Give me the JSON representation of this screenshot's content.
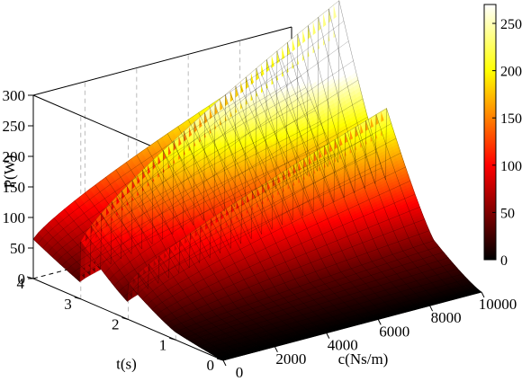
{
  "chart_data": {
    "type": "surface3d",
    "title": "",
    "xlabel": "c(Ns/m)",
    "ylabel": "t(s)",
    "zlabel": "P(W)",
    "xlim": [
      0,
      10000
    ],
    "ylim": [
      0,
      4
    ],
    "zlim": [
      0,
      300
    ],
    "x_ticks": [
      0,
      2000,
      4000,
      6000,
      8000,
      10000
    ],
    "y_ticks": [
      0,
      1,
      2,
      3,
      4
    ],
    "z_ticks": [
      0,
      50,
      100,
      150,
      200,
      250,
      300
    ],
    "grid": true,
    "colormap": "hot",
    "colorbar": {
      "min": 0,
      "max": 270,
      "ticks": [
        0,
        50,
        100,
        150,
        200,
        250
      ],
      "placement": "right"
    },
    "ridges": [
      {
        "t_start": 2.0,
        "t_end": 4.0,
        "peak": 258
      },
      {
        "t_start": 1.0,
        "t_end": 3.0,
        "peak": 268
      },
      {
        "t_start": 0.0,
        "t_end": 2.0,
        "peak": 121
      }
    ]
  }
}
